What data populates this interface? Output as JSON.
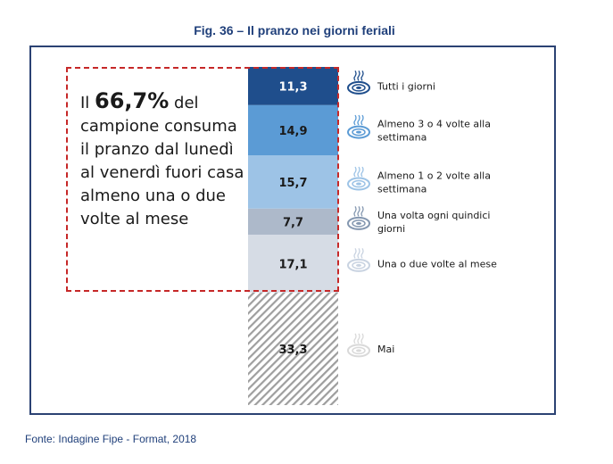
{
  "figure": {
    "title": "Fig. 36 – Il pranzo nei giorni feriali",
    "source": "Fonte: Indagine Fipe - Format, 2018"
  },
  "callout": {
    "prefix": "Il ",
    "highlight": "66,7%",
    "suffix": " del campione consuma il pranzo dal lunedì al venerdì fuori casa almeno una o due volte al mese"
  },
  "chart_data": {
    "type": "bar",
    "stacked": true,
    "orientation": "vertical",
    "categories": [
      "Tutti i giorni",
      "Almeno 3 o 4 volte alla settimana",
      "Almeno 1 o 2 volte alla settimana",
      "Una volta ogni quindici giorni",
      "Una o due volte al mese",
      "Mai"
    ],
    "values": [
      11.3,
      14.9,
      15.7,
      7.7,
      17.1,
      33.3
    ],
    "value_labels": [
      "11,3",
      "14,9",
      "15,7",
      "7,7",
      "17,1",
      "33,3"
    ],
    "legend_lines": [
      [
        "Tutti i giorni"
      ],
      [
        "Almeno 3 o 4 volte alla",
        "settimana"
      ],
      [
        "Almeno 1 o 2 volte alla",
        "settimana"
      ],
      [
        "Una volta ogni quindici",
        "giorni"
      ],
      [
        "Una o due volte al mese"
      ],
      [
        "Mai"
      ]
    ],
    "colors": [
      "#1f4e8c",
      "#5b9bd5",
      "#9dc3e6",
      "#adb9ca",
      "#d6dce5",
      "hatch"
    ],
    "value_colors": [
      "#ffffff",
      "#1a1a1a",
      "#1a1a1a",
      "#1a1a1a",
      "#1a1a1a",
      "#1a1a1a"
    ],
    "icon_colors": [
      "#1f4e8c",
      "#5b9bd5",
      "#9dc3e6",
      "#8497b0",
      "#c9d3e1",
      "#d9d9d9"
    ],
    "legend_placement": "right",
    "legend_icon": "plate-icon"
  }
}
